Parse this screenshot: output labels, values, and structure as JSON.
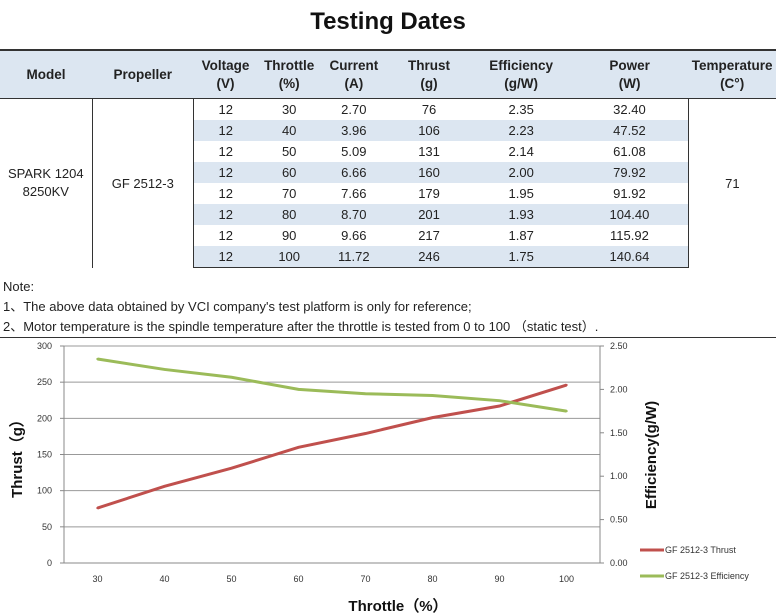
{
  "title": "Testing Dates",
  "table": {
    "headers": [
      [
        "Model",
        ""
      ],
      [
        "Propeller",
        ""
      ],
      [
        "Voltage",
        "(V)"
      ],
      [
        "Throttle",
        "(%)"
      ],
      [
        "Current",
        "(A)"
      ],
      [
        "Thrust",
        "(g)"
      ],
      [
        "Efficiency",
        "(g/W)"
      ],
      [
        "Power",
        "(W)"
      ],
      [
        "Temperature",
        "(C°)"
      ]
    ],
    "model": [
      "SPARK 1204",
      "8250KV"
    ],
    "propeller": "GF 2512-3",
    "temperature": "71",
    "rows": [
      [
        "12",
        "30",
        "2.70",
        "76",
        "2.35",
        "32.40"
      ],
      [
        "12",
        "40",
        "3.96",
        "106",
        "2.23",
        "47.52"
      ],
      [
        "12",
        "50",
        "5.09",
        "131",
        "2.14",
        "61.08"
      ],
      [
        "12",
        "60",
        "6.66",
        "160",
        "2.00",
        "79.92"
      ],
      [
        "12",
        "70",
        "7.66",
        "179",
        "1.95",
        "91.92"
      ],
      [
        "12",
        "80",
        "8.70",
        "201",
        "1.93",
        "104.40"
      ],
      [
        "12",
        "90",
        "9.66",
        "217",
        "1.87",
        "115.92"
      ],
      [
        "12",
        "100",
        "11.72",
        "246",
        "1.75",
        "140.64"
      ]
    ]
  },
  "notes": [
    "Note:",
    "1、The above data obtained by VCI company's test platform is only for reference;",
    "2、Motor temperature is the spindle temperature after the throttle is tested from 0 to 100 （static test）."
  ],
  "chart_data": {
    "type": "line",
    "categories": [
      "30",
      "40",
      "50",
      "60",
      "70",
      "80",
      "90",
      "100"
    ],
    "xlabel": "Throttle（%）",
    "ylabel": "Thrust（g）",
    "y2label": "Efficiency(g/W)",
    "ylim": [
      0,
      300
    ],
    "yticks": [
      "0",
      "50",
      "100",
      "150",
      "200",
      "250",
      "300"
    ],
    "y2lim": [
      0,
      2.5
    ],
    "y2ticks": [
      "0.00",
      "0.50",
      "1.00",
      "1.50",
      "2.00",
      "2.50"
    ],
    "grid": true,
    "legend": "right",
    "series": [
      {
        "name": "GF 2512-3 Thrust",
        "axis": "left",
        "color": "#c0504d",
        "values": [
          76,
          106,
          131,
          160,
          179,
          201,
          217,
          246
        ]
      },
      {
        "name": "GF 2512-3 Efficiency",
        "axis": "right",
        "color": "#9bbb59",
        "values": [
          2.35,
          2.23,
          2.14,
          2.0,
          1.95,
          1.93,
          1.87,
          1.75
        ]
      }
    ]
  }
}
